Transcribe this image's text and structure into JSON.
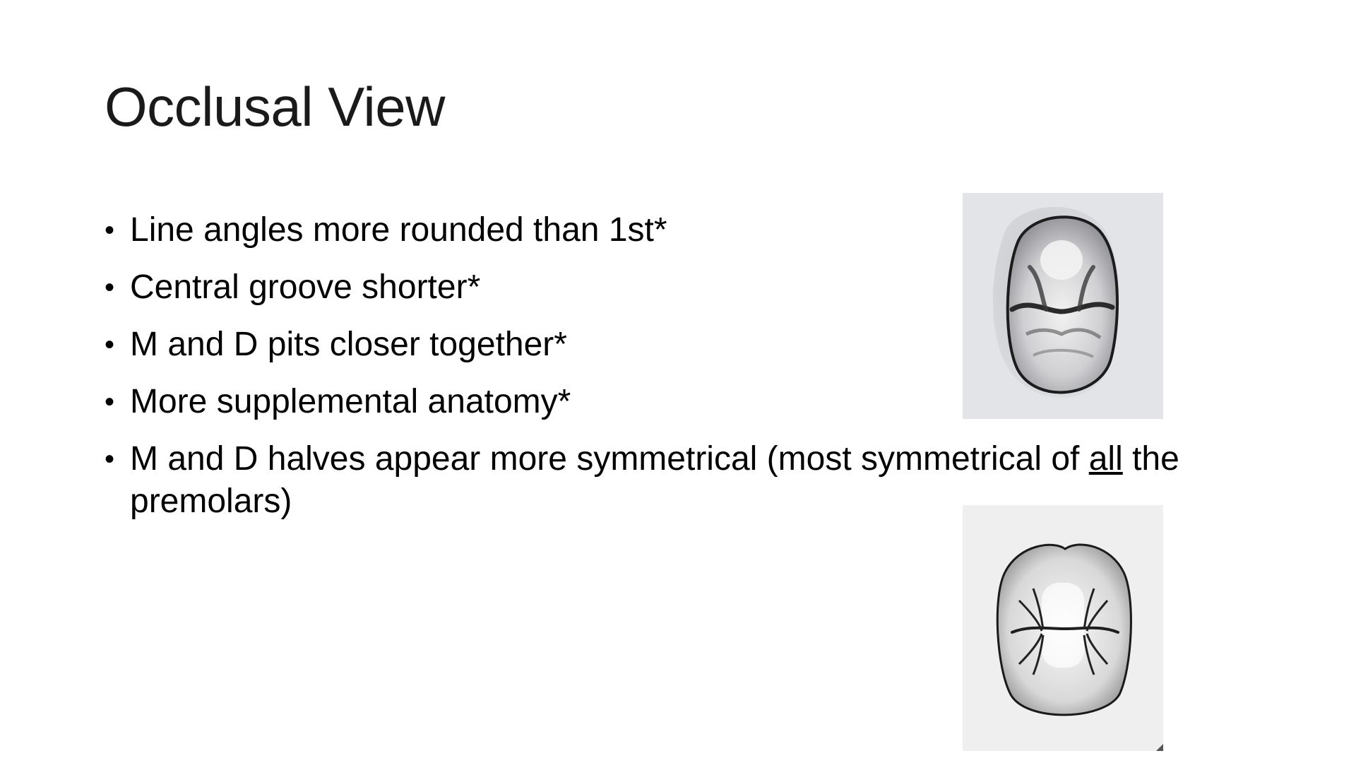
{
  "slide": {
    "title": "Occlusal View",
    "bullets": [
      {
        "text": "Line angles more rounded than 1st*"
      },
      {
        "text": "Central groove shorter*"
      },
      {
        "text": "M and D pits closer together*"
      },
      {
        "text": "More supplemental anatomy*"
      },
      {
        "text_before": "M and D halves appear more symmetrical (most symmetrical of ",
        "underlined": "all",
        "text_after": " the premolars)"
      }
    ],
    "bullet_glyph": "•"
  },
  "images": [
    {
      "name": "tooth-occlusal-photo",
      "background": "#e3e4e8"
    },
    {
      "name": "tooth-occlusal-drawing",
      "background": "#efefef"
    }
  ]
}
